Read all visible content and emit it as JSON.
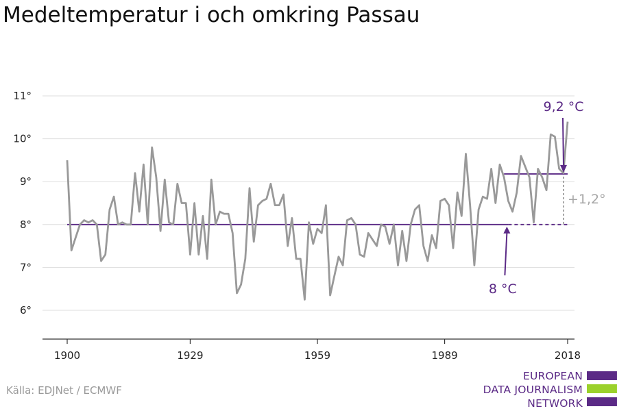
{
  "title": "Medeltemperatur i och omkring Passau",
  "source": "Källa: EDJNet / ECMWF",
  "logo": {
    "lines": [
      "EUROPEAN",
      "DATA JOURNALISM",
      "NETWORK"
    ]
  },
  "colors": {
    "series": "#999999",
    "accent": "#5b2a86",
    "logo_green": "#9bd12b",
    "grid": "#dddddd",
    "delta": "#a6a6a6"
  },
  "chart_data": {
    "type": "line",
    "title": "Medeltemperatur i och omkring Passau",
    "xlabel": "",
    "ylabel": "",
    "xlim": [
      1900,
      2018
    ],
    "ylim": [
      5.5,
      11.3
    ],
    "x_ticks": [
      1900,
      1929,
      1959,
      1989,
      2018
    ],
    "x_tick_labels": [
      "1900",
      "1929",
      "1959",
      "1989",
      "2018"
    ],
    "y_ticks": [
      6,
      7,
      8,
      9,
      10,
      11
    ],
    "y_tick_labels": [
      "6°",
      "7°",
      "8°",
      "9°",
      "10°",
      "11°"
    ],
    "grid": "horizontal",
    "series": [
      {
        "values_x_start": 1900,
        "values_x_step": 1,
        "values": [
          9.5,
          7.4,
          7.7,
          8.0,
          8.1,
          8.05,
          8.1,
          8.0,
          7.15,
          7.3,
          8.35,
          8.65,
          8.0,
          8.05,
          8.0,
          8.0,
          9.2,
          8.3,
          9.4,
          8.0,
          9.8,
          9.1,
          7.85,
          9.05,
          8.05,
          8.0,
          8.95,
          8.5,
          8.5,
          7.3,
          8.5,
          7.3,
          8.2,
          7.2,
          9.05,
          8.0,
          8.3,
          8.25,
          8.25,
          7.8,
          6.4,
          6.6,
          7.2,
          8.85,
          7.6,
          8.45,
          8.55,
          8.6,
          8.95,
          8.45,
          8.45,
          8.7,
          7.5,
          8.15,
          7.2,
          7.2,
          6.25,
          8.05,
          7.55,
          7.9,
          7.8,
          8.45,
          6.35,
          6.8,
          7.25,
          7.05,
          8.1,
          8.15,
          8.0,
          7.3,
          7.25,
          7.8,
          7.65,
          7.5,
          8.0,
          7.95,
          7.55,
          8.0,
          7.05,
          7.85,
          7.15,
          8.0,
          8.35,
          8.45,
          7.5,
          7.15,
          7.75,
          7.45,
          8.55,
          8.6,
          8.45,
          7.45,
          8.75,
          8.2,
          9.65,
          8.45,
          7.05,
          8.35,
          8.65,
          8.6,
          9.3,
          8.5,
          9.4,
          9.1,
          8.55,
          8.3,
          8.75,
          9.6,
          9.35,
          9.1,
          8.05,
          9.3,
          9.1,
          8.8,
          10.1,
          10.05,
          9.3,
          9.2,
          10.4
        ]
      }
    ],
    "reference_lines": [
      {
        "label": "8 °C",
        "value": 8.0,
        "x_solid": [
          1900,
          2004
        ],
        "x_dashed": [
          2004,
          2018
        ]
      },
      {
        "label": "9,2 °C",
        "value": 9.18,
        "x_solid": [
          2003,
          2018
        ]
      }
    ],
    "delta_label": "+1,2°"
  }
}
